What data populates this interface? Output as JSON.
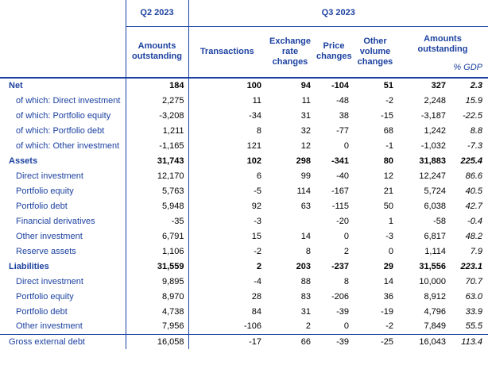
{
  "table": {
    "header": {
      "q2_label": "Q2 2023",
      "q3_label": "Q3 2023",
      "col_q2_amounts": "Amounts outstanding",
      "col_transactions": "Transactions",
      "col_exchange": "Exchange rate changes",
      "col_price": "Price changes",
      "col_other_volume": "Other volume changes",
      "col_q3_amounts": "Amounts outstanding",
      "col_gdp": "% GDP"
    },
    "rows": [
      {
        "label": "Net",
        "indent": 0,
        "bold": true,
        "separator_above": false,
        "values": [
          "184",
          "100",
          "94",
          "-104",
          "51",
          "327",
          "2.3"
        ]
      },
      {
        "label": "of which: Direct investment",
        "indent": 1,
        "bold": false,
        "separator_above": false,
        "values": [
          "2,275",
          "11",
          "11",
          "-48",
          "-2",
          "2,248",
          "15.9"
        ]
      },
      {
        "label": "of which: Portfolio equity",
        "indent": 1,
        "bold": false,
        "separator_above": false,
        "values": [
          "-3,208",
          "-34",
          "31",
          "38",
          "-15",
          "-3,187",
          "-22.5"
        ]
      },
      {
        "label": "of which: Portfolio debt",
        "indent": 1,
        "bold": false,
        "separator_above": false,
        "values": [
          "1,211",
          "8",
          "32",
          "-77",
          "68",
          "1,242",
          "8.8"
        ]
      },
      {
        "label": "of which: Other investment",
        "indent": 1,
        "bold": false,
        "separator_above": false,
        "values": [
          "-1,165",
          "121",
          "12",
          "0",
          "-1",
          "-1,032",
          "-7.3"
        ]
      },
      {
        "label": "Assets",
        "indent": 0,
        "bold": true,
        "separator_above": false,
        "values": [
          "31,743",
          "102",
          "298",
          "-341",
          "80",
          "31,883",
          "225.4"
        ]
      },
      {
        "label": "Direct investment",
        "indent": 1,
        "bold": false,
        "separator_above": false,
        "values": [
          "12,170",
          "6",
          "99",
          "-40",
          "12",
          "12,247",
          "86.6"
        ]
      },
      {
        "label": "Portfolio equity",
        "indent": 1,
        "bold": false,
        "separator_above": false,
        "values": [
          "5,763",
          "-5",
          "114",
          "-167",
          "21",
          "5,724",
          "40.5"
        ]
      },
      {
        "label": "Portfolio debt",
        "indent": 1,
        "bold": false,
        "separator_above": false,
        "values": [
          "5,948",
          "92",
          "63",
          "-115",
          "50",
          "6,038",
          "42.7"
        ]
      },
      {
        "label": "Financial derivatives",
        "indent": 1,
        "bold": false,
        "separator_above": false,
        "values": [
          "-35",
          "-3",
          "",
          "-20",
          "1",
          "-58",
          "-0.4"
        ]
      },
      {
        "label": "Other investment",
        "indent": 1,
        "bold": false,
        "separator_above": false,
        "values": [
          "6,791",
          "15",
          "14",
          "0",
          "-3",
          "6,817",
          "48.2"
        ]
      },
      {
        "label": "Reserve assets",
        "indent": 1,
        "bold": false,
        "separator_above": false,
        "values": [
          "1,106",
          "-2",
          "8",
          "2",
          "0",
          "1,114",
          "7.9"
        ]
      },
      {
        "label": "Liabilities",
        "indent": 0,
        "bold": true,
        "separator_above": false,
        "values": [
          "31,559",
          "2",
          "203",
          "-237",
          "29",
          "31,556",
          "223.1"
        ]
      },
      {
        "label": "Direct investment",
        "indent": 1,
        "bold": false,
        "separator_above": false,
        "values": [
          "9,895",
          "-4",
          "88",
          "8",
          "14",
          "10,000",
          "70.7"
        ]
      },
      {
        "label": "Portfolio equity",
        "indent": 1,
        "bold": false,
        "separator_above": false,
        "values": [
          "8,970",
          "28",
          "83",
          "-206",
          "36",
          "8,912",
          "63.0"
        ]
      },
      {
        "label": "Portfolio debt",
        "indent": 1,
        "bold": false,
        "separator_above": false,
        "values": [
          "4,738",
          "84",
          "31",
          "-39",
          "-19",
          "4,796",
          "33.9"
        ]
      },
      {
        "label": "Other investment",
        "indent": 1,
        "bold": false,
        "separator_above": false,
        "values": [
          "7,956",
          "-106",
          "2",
          "0",
          "-2",
          "7,849",
          "55.5"
        ]
      },
      {
        "label": "Gross external debt",
        "indent": 0,
        "bold": false,
        "separator_above": true,
        "values": [
          "16,058",
          "-17",
          "66",
          "-39",
          "-25",
          "16,043",
          "113.4"
        ]
      }
    ]
  },
  "colors": {
    "accent_blue": "#1C41A0",
    "rule_blue": "#1C41A0",
    "number_black": "#000000",
    "background": "#FFFFFF"
  }
}
